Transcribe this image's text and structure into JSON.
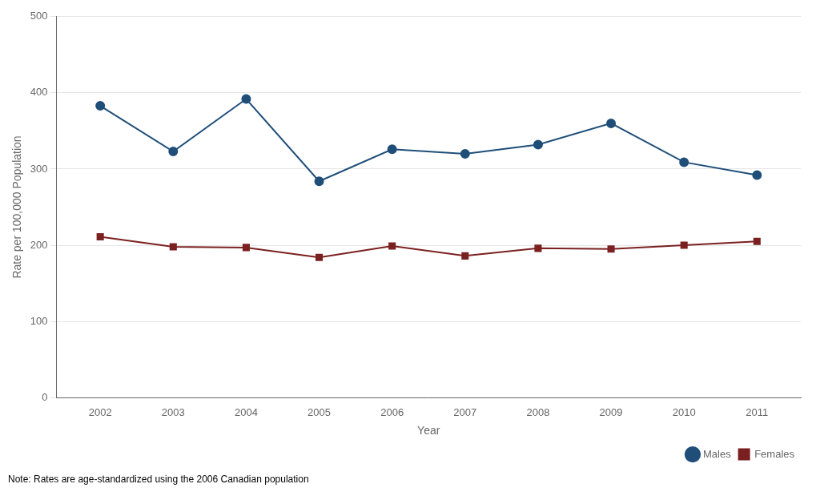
{
  "chart_data": {
    "type": "line",
    "x_label": "Year",
    "y_label": "Rate per 100,000 Population",
    "annotations": [
      "Note: Rates are age-standardized using the 2006 Canadian population"
    ],
    "x": [
      2002,
      2003,
      2004,
      2005,
      2006,
      2007,
      2008,
      2009,
      2010,
      2011
    ],
    "series": [
      {
        "name": "Males",
        "color": "#1f4e79",
        "marker": "circle",
        "line_style": "solid",
        "values": [
          383,
          323,
          392,
          284,
          326,
          320,
          332,
          360,
          309,
          292
        ]
      },
      {
        "name": "Females",
        "color": "#7b2020",
        "marker": "square",
        "line_style": "solid",
        "values": [
          211,
          198,
          197,
          184,
          199,
          186,
          196,
          195,
          200,
          205
        ]
      }
    ],
    "xlim": [
      2001.4,
      2011.6
    ],
    "xticks": [
      2002,
      2003,
      2004,
      2005,
      2006,
      2007,
      2008,
      2009,
      2010,
      2011
    ],
    "ylim": [
      0,
      500
    ],
    "yticks": [
      0,
      100,
      200,
      300,
      400,
      500
    ],
    "grid": "y",
    "legend": "lower right"
  }
}
